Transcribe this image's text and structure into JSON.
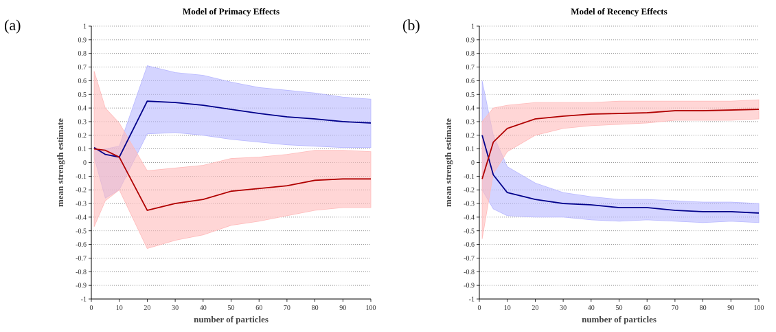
{
  "panels": [
    {
      "letter": "(a)",
      "chart_data": {
        "type": "line",
        "title": "Model of Primacy Effects",
        "xlabel": "number of particles",
        "ylabel": "mean strength estimate",
        "x": [
          1,
          5,
          10,
          20,
          30,
          40,
          50,
          60,
          70,
          80,
          90,
          100
        ],
        "xlim": [
          0,
          100
        ],
        "ylim": [
          -1,
          1
        ],
        "xticks": [
          "0",
          "10",
          "20",
          "30",
          "40",
          "50",
          "60",
          "70",
          "80",
          "90",
          "100"
        ],
        "yticks": [
          "1",
          "0.9",
          "0.8",
          "0.7",
          "0.6",
          "0.5",
          "0.4",
          "0.3",
          "0.2",
          "0.1",
          "0",
          "-0.1",
          "-0.2",
          "-0.3",
          "-0.4",
          "-0.5",
          "-0.6",
          "-0.7",
          "-0.8",
          "-0.9",
          "-1"
        ],
        "grid": "horizontal dotted",
        "series": [
          {
            "color": "#00008b",
            "band_color": "#b8b8ff",
            "values": [
              0.11,
              0.06,
              0.04,
              0.45,
              0.44,
              0.42,
              0.39,
              0.36,
              0.335,
              0.32,
              0.3,
              0.29
            ],
            "upper": [
              0.09,
              0.1,
              0.12,
              0.71,
              0.66,
              0.64,
              0.59,
              0.55,
              0.53,
              0.51,
              0.48,
              0.465
            ],
            "lower": [
              0.04,
              -0.26,
              -0.2,
              0.21,
              0.22,
              0.2,
              0.17,
              0.15,
              0.13,
              0.12,
              0.11,
              0.11
            ]
          },
          {
            "color": "#b00000",
            "band_color": "#ffbbbb",
            "values": [
              0.1,
              0.09,
              0.04,
              -0.35,
              -0.3,
              -0.27,
              -0.21,
              -0.19,
              -0.17,
              -0.13,
              -0.12,
              -0.12
            ],
            "upper": [
              0.67,
              0.4,
              0.29,
              -0.06,
              -0.04,
              -0.02,
              0.03,
              0.04,
              0.06,
              0.09,
              0.09,
              0.08
            ],
            "lower": [
              -0.47,
              -0.28,
              -0.2,
              -0.63,
              -0.57,
              -0.53,
              -0.46,
              -0.43,
              -0.39,
              -0.35,
              -0.33,
              -0.33
            ]
          }
        ]
      }
    },
    {
      "letter": "(b)",
      "chart_data": {
        "type": "line",
        "title": "Model of Recency Effects",
        "xlabel": "number of particles",
        "ylabel": "mean strength estimate",
        "x": [
          1,
          5,
          10,
          20,
          30,
          40,
          50,
          60,
          70,
          80,
          90,
          100
        ],
        "xlim": [
          0,
          100
        ],
        "ylim": [
          -1,
          1
        ],
        "xticks": [
          "0",
          "10",
          "20",
          "30",
          "40",
          "50",
          "60",
          "70",
          "80",
          "90",
          "100"
        ],
        "yticks": [
          "1",
          "0.9",
          "0.8",
          "0.7",
          "0.6",
          "0.5",
          "0.4",
          "0.3",
          "0.2",
          "0.1",
          "0",
          "-0.1",
          "-0.2",
          "-0.3",
          "-0.4",
          "-0.5",
          "-0.6",
          "-0.7",
          "-0.8",
          "-0.9",
          "-1"
        ],
        "grid": "horizontal dotted",
        "series": [
          {
            "color": "#00008b",
            "band_color": "#b8b8ff",
            "values": [
              0.2,
              -0.09,
              -0.22,
              -0.27,
              -0.3,
              -0.31,
              -0.33,
              -0.33,
              -0.35,
              -0.36,
              -0.36,
              -0.37
            ],
            "upper": [
              0.6,
              0.2,
              -0.03,
              -0.15,
              -0.22,
              -0.25,
              -0.27,
              -0.27,
              -0.28,
              -0.29,
              -0.29,
              -0.3
            ],
            "lower": [
              -0.2,
              -0.34,
              -0.39,
              -0.4,
              -0.4,
              -0.42,
              -0.43,
              -0.42,
              -0.43,
              -0.44,
              -0.43,
              -0.44
            ]
          },
          {
            "color": "#b00000",
            "band_color": "#ffbbbb",
            "values": [
              -0.12,
              0.15,
              0.25,
              0.32,
              0.34,
              0.355,
              0.36,
              0.365,
              0.38,
              0.38,
              0.385,
              0.39
            ],
            "upper": [
              0.3,
              0.4,
              0.42,
              0.44,
              0.44,
              0.44,
              0.45,
              0.45,
              0.45,
              0.45,
              0.45,
              0.46
            ],
            "lower": [
              -0.56,
              -0.08,
              0.08,
              0.2,
              0.25,
              0.27,
              0.28,
              0.29,
              0.31,
              0.31,
              0.31,
              0.32
            ]
          }
        ]
      }
    }
  ]
}
